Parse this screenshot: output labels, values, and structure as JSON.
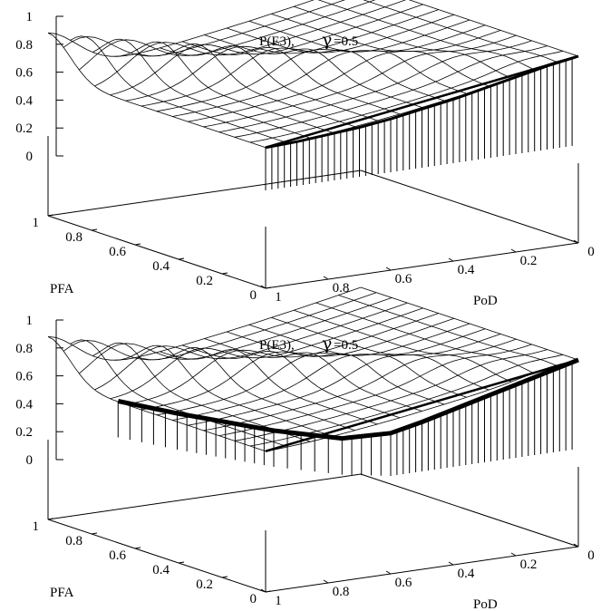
{
  "chart_data": [
    {
      "type": "surface3d",
      "title": "P(E3),",
      "gamma_symbol": "γ",
      "gamma_value": "=0.5",
      "xlabel": "PoD",
      "ylabel": "PFA",
      "zlim": [
        0,
        1
      ],
      "z_ticks": [
        "1",
        "0.8",
        "0.6",
        "0.4",
        "0.2",
        "0"
      ],
      "pod_ticks": [
        "1",
        "0.8",
        "0.6",
        "0.4",
        "0.2",
        "0"
      ],
      "pfa_ticks": [
        "1",
        "0.8",
        "0.6",
        "0.4",
        "0.2",
        "0"
      ],
      "curve_pod": [
        1.0,
        0.9,
        0.8,
        0.7,
        0.6,
        0.5,
        0.4,
        0.3,
        0.2,
        0.1,
        0.0
      ],
      "curve_pfa": [
        0.0,
        0.0,
        0.0,
        0.0,
        0.0,
        0.0,
        0.0,
        0.0,
        0.0,
        0.0,
        0.0
      ],
      "curve_z": [
        0.05,
        0.06,
        0.08,
        0.1,
        0.13,
        0.17,
        0.21,
        0.26,
        0.31,
        0.36,
        0.4
      ]
    },
    {
      "type": "surface3d",
      "title": "P(E3),",
      "gamma_symbol": "γ",
      "gamma_value": "=0.5",
      "xlabel": "PoD",
      "ylabel": "PFA",
      "zlim": [
        0,
        1
      ],
      "z_ticks": [
        "1",
        "0.8",
        "0.6",
        "0.4",
        "0.2",
        "0"
      ],
      "pod_ticks": [
        "1",
        "0.8",
        "0.6",
        "0.4",
        "0.2",
        "0"
      ],
      "pfa_ticks": [
        "1",
        "0.8",
        "0.6",
        "0.4",
        "0.2",
        "0"
      ],
      "curve_pod": [
        0.95,
        0.9,
        0.85,
        0.8,
        0.7,
        0.6,
        0.5,
        0.4,
        0.3,
        0.2,
        0.1,
        0.0
      ],
      "curve_pfa": [
        0.75,
        0.55,
        0.4,
        0.25,
        0.08,
        0.0,
        0.0,
        0.0,
        0.0,
        0.0,
        0.0,
        0.0
      ],
      "curve_z": [
        0.0,
        0.0,
        0.0,
        0.0,
        0.0,
        0.05,
        0.1,
        0.16,
        0.22,
        0.28,
        0.34,
        0.4
      ]
    }
  ]
}
